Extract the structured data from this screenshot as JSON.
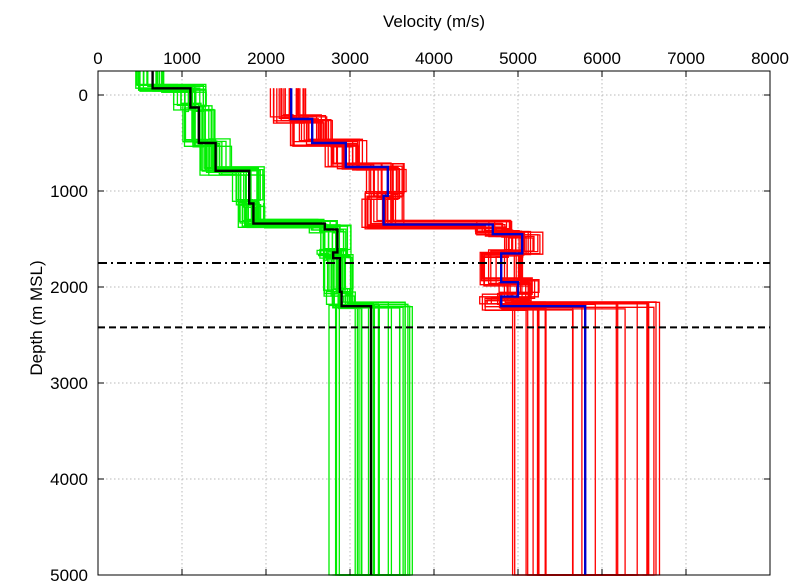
{
  "chart_data": {
    "type": "line",
    "title": "",
    "xlabel": "Velocity (m/s)",
    "ylabel": "Depth (m MSL)",
    "xlim": [
      0,
      8000
    ],
    "ylim": [
      5000,
      -250
    ],
    "x_axis_position": "top",
    "y_axis_reversed": true,
    "grid": true,
    "x_ticks": [
      0,
      1000,
      2000,
      3000,
      4000,
      5000,
      6000,
      7000,
      8000
    ],
    "y_ticks": [
      0,
      1000,
      2000,
      3000,
      4000,
      5000
    ],
    "x_tick_labels": [
      "0",
      "1000",
      "2000",
      "3000",
      "4000",
      "5000",
      "6000",
      "7000",
      "8000"
    ],
    "y_tick_labels": [
      "0",
      "1000",
      "2000",
      "3000",
      "4000",
      "5000"
    ],
    "colors": {
      "vs_ensemble": "#00ee00",
      "vs_best": "#000000",
      "vp_ensemble": "#ff0000",
      "vp_best": "#0000cc",
      "reference_lines": "#000000"
    },
    "series": [
      {
        "role": "vs_best",
        "depths": [
          -250,
          -70,
          130,
          500,
          790,
          1130,
          1340,
          1400,
          1640,
          1700,
          2050,
          2200,
          5000
        ],
        "velocities": [
          650,
          1100,
          1200,
          1400,
          1800,
          1850,
          2700,
          2850,
          2800,
          2880,
          2900,
          3250,
          3250
        ]
      },
      {
        "role": "vp_best",
        "depths": [
          -70,
          250,
          500,
          750,
          1050,
          1350,
          1450,
          1650,
          1950,
          2100,
          2200,
          5000
        ],
        "velocities": [
          2300,
          2550,
          2950,
          3450,
          3400,
          4700,
          5050,
          4800,
          5000,
          4800,
          5800,
          5800
        ]
      }
    ],
    "vs_ensemble_variants": 24,
    "vp_ensemble_variants": 24,
    "reference_lines": [
      {
        "depth": 1750,
        "style": "dash-dot"
      },
      {
        "depth": 2420,
        "style": "dashed"
      }
    ]
  }
}
